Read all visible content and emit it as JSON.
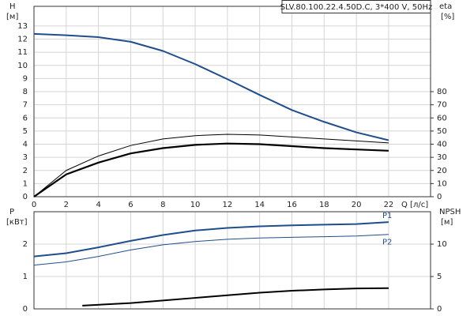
{
  "chart_data": [
    {
      "type": "line",
      "title": "SLV.80.100.22.4.50D.C, 3*400 V, 50Hz",
      "ylabel": "H",
      "yunit": "[м]",
      "y2label": "eta",
      "y2unit": "[%]",
      "xlabel": "Q [л/с]",
      "x": [
        0,
        2,
        4,
        6,
        8,
        10,
        12,
        14,
        16,
        18,
        20,
        22
      ],
      "xlim": [
        0,
        24.6
      ],
      "xticks": [
        0,
        2,
        4,
        6,
        8,
        10,
        12,
        14,
        16,
        18,
        20,
        22
      ],
      "xtick_labels": true,
      "ylim": [
        0,
        14.5
      ],
      "yticks": [
        0,
        1,
        2,
        3,
        4,
        5,
        6,
        7,
        8,
        9,
        10,
        11,
        12,
        13
      ],
      "y2lim": [
        0,
        145
      ],
      "y2ticks": [
        0,
        10,
        20,
        30,
        40,
        50,
        60,
        70,
        80
      ],
      "grid": true,
      "series": [
        {
          "color": "#1f4e8c",
          "width": 2,
          "values": [
            12.4,
            12.3,
            12.15,
            11.8,
            11.1,
            10.1,
            8.95,
            7.75,
            6.6,
            5.7,
            4.9,
            4.3
          ]
        },
        {
          "color": "#000000",
          "width": 1,
          "axis": "y2",
          "values": [
            0,
            20,
            31,
            39,
            44,
            46.5,
            47.5,
            47,
            45.5,
            44,
            42.5,
            41
          ]
        },
        {
          "color": "#000000",
          "width": 2.2,
          "axis": "y2",
          "values": [
            0,
            17,
            26,
            33,
            37,
            39.5,
            40.5,
            40,
            38.5,
            37,
            36,
            35
          ]
        }
      ]
    },
    {
      "type": "line",
      "ylabel": "P",
      "yunit": "[кВт]",
      "y2label": "NPSH",
      "y2unit": "[м]",
      "x": [
        0,
        2,
        4,
        6,
        8,
        10,
        12,
        14,
        16,
        18,
        20,
        22
      ],
      "xlim": [
        0,
        24.6
      ],
      "xticks": [
        0,
        2,
        4,
        6,
        8,
        10,
        12,
        14,
        16,
        18,
        20,
        22
      ],
      "xtick_labels": false,
      "ylim": [
        0,
        3
      ],
      "yticks": [
        0,
        1,
        2
      ],
      "y2lim": [
        0,
        15
      ],
      "y2ticks": [
        0,
        5,
        10
      ],
      "grid": true,
      "series": [
        {
          "name": "P1",
          "color": "#1f4e8c",
          "width": 2,
          "values": [
            1.62,
            1.72,
            1.9,
            2.1,
            2.28,
            2.42,
            2.5,
            2.55,
            2.58,
            2.6,
            2.62,
            2.68
          ]
        },
        {
          "name": "P2",
          "color": "#1f4e8c",
          "width": 1,
          "values": [
            1.35,
            1.45,
            1.62,
            1.82,
            1.98,
            2.08,
            2.15,
            2.19,
            2.21,
            2.23,
            2.25,
            2.3
          ]
        },
        {
          "color": "#000000",
          "width": 2,
          "axis": "y2",
          "x": [
            3,
            6,
            8,
            10,
            12,
            14,
            16,
            18,
            20,
            22
          ],
          "values": [
            0.5,
            0.9,
            1.3,
            1.7,
            2.1,
            2.5,
            2.8,
            3.0,
            3.15,
            3.2
          ]
        }
      ]
    }
  ]
}
